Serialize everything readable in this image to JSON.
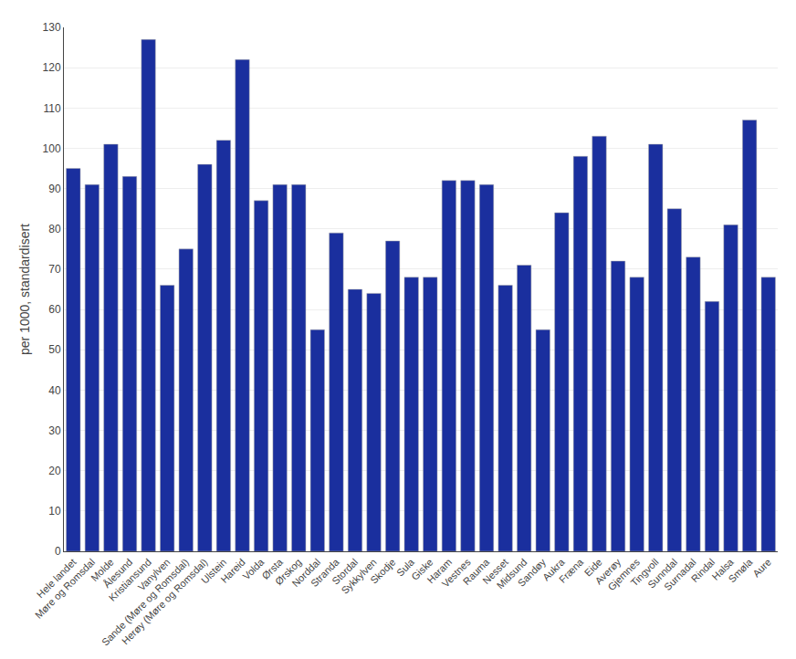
{
  "chart_data": {
    "type": "bar",
    "ylabel": "per 1000, standardisert",
    "categories": [
      "Hele landet",
      "Møre og Romsdal",
      "Molde",
      "Ålesund",
      "Kristiansund",
      "Vanylven",
      "Sande (Møre og Romsdal)",
      "Herøy (Møre og Romsdal)",
      "Ulstein",
      "Hareid",
      "Volda",
      "Ørsta",
      "Ørskog",
      "Norddal",
      "Stranda",
      "Stordal",
      "Sykkylven",
      "Skodje",
      "Sula",
      "Giske",
      "Haram",
      "Vestnes",
      "Rauma",
      "Nesset",
      "Midsund",
      "Sandøy",
      "Aukra",
      "Fræna",
      "Eide",
      "Averøy",
      "Gjemnes",
      "Tingvoll",
      "Sunndal",
      "Surnadal",
      "Rindal",
      "Halsa",
      "Smøla",
      "Aure"
    ],
    "values": [
      95,
      91,
      101,
      93,
      127,
      66,
      75,
      96,
      102,
      122,
      87,
      91,
      91,
      55,
      79,
      65,
      64,
      77,
      68,
      68,
      92,
      92,
      91,
      66,
      71,
      55,
      84,
      98,
      103,
      72,
      68,
      101,
      85,
      73,
      62,
      81,
      107,
      68
    ],
    "color": "#1a2f9e",
    "ylim": [
      0,
      130
    ],
    "yticks": [
      0,
      10,
      20,
      30,
      40,
      50,
      60,
      70,
      80,
      90,
      100,
      110,
      120,
      130
    ],
    "grid": true
  }
}
